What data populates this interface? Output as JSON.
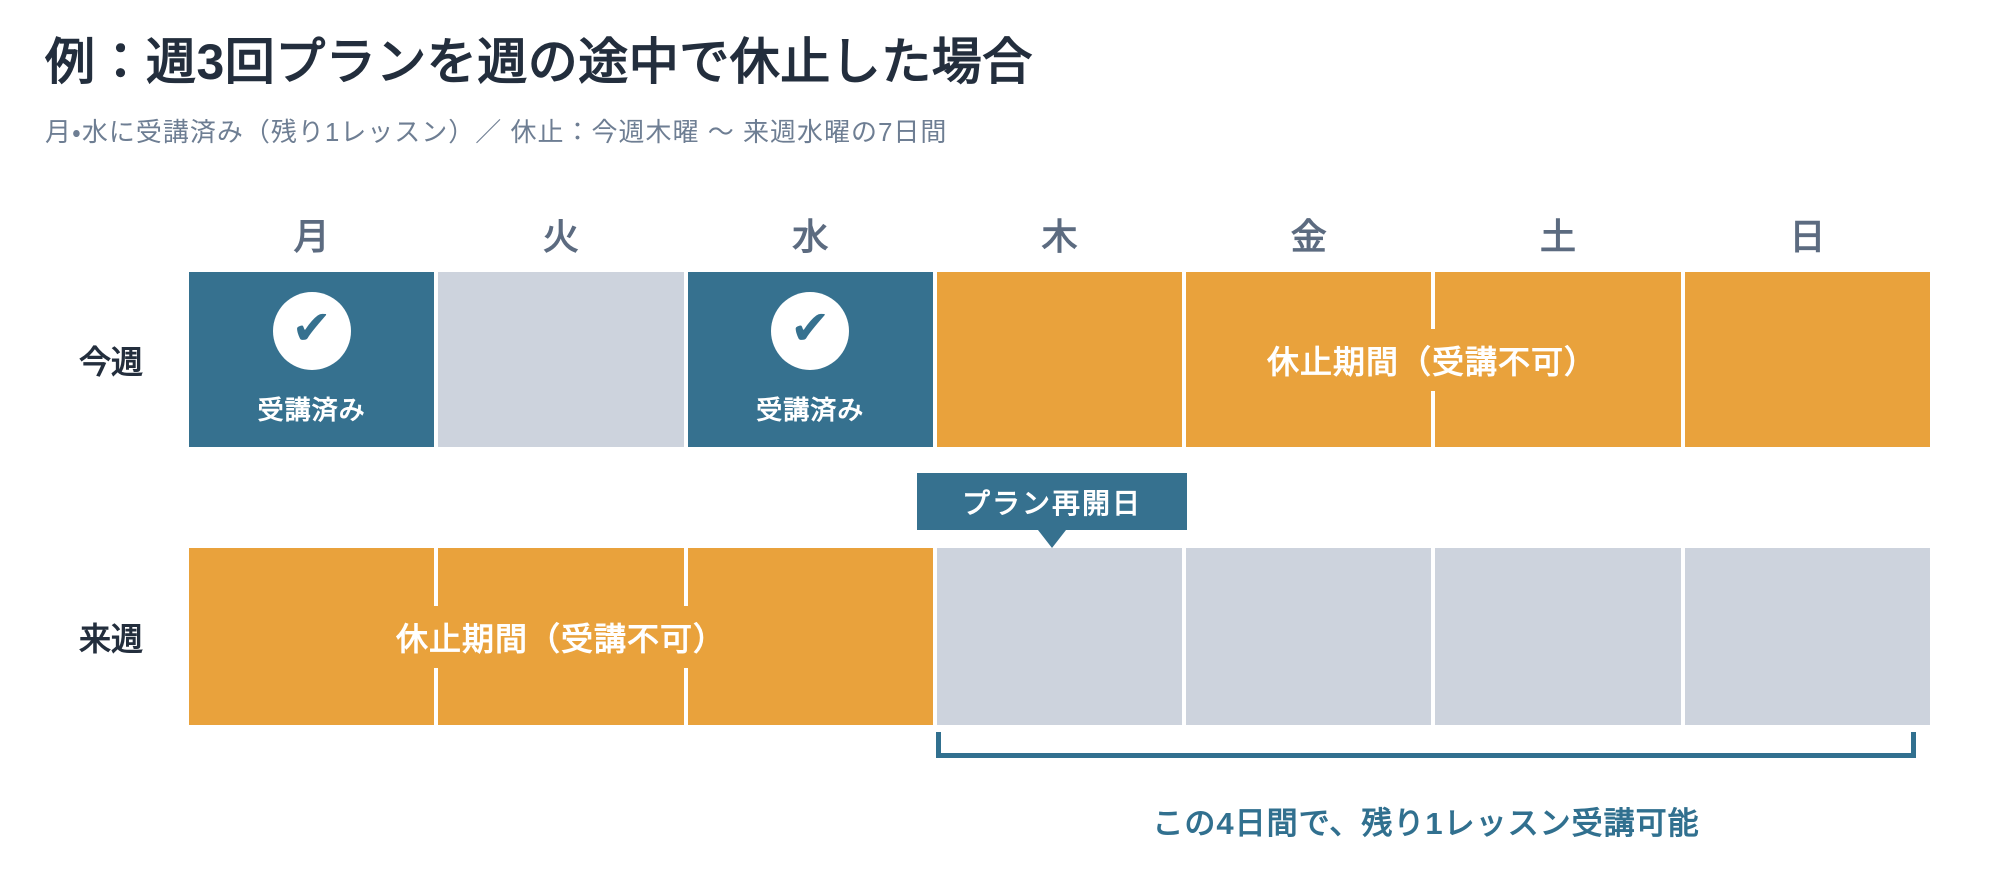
{
  "page": {
    "title": "例：週3回プランを週の途中で休止した場合",
    "subtitle": "月・水に受講済み（残り1レッスン）／ 休止：今週木曜 〜 来週水曜の7日間"
  },
  "days": [
    "月",
    "火",
    "水",
    "木",
    "金",
    "土",
    "日"
  ],
  "this_week": {
    "label": "今週",
    "completed_label": "受講済み",
    "suspension_label": "休止期間（受講不可）",
    "cell_states": [
      "completed",
      "empty",
      "completed",
      "suspended",
      "suspended",
      "suspended",
      "suspended"
    ]
  },
  "next_week": {
    "label": "来週",
    "suspension_label": "休止期間（受講不可）",
    "cell_states": [
      "suspended",
      "suspended",
      "suspended",
      "available",
      "available",
      "available",
      "available"
    ]
  },
  "badge": {
    "label": "プラン再開日"
  },
  "footer": {
    "note": "この4日間で、残り1レッスン受講可能"
  },
  "icons": {
    "check": "✔"
  },
  "colors": {
    "teal": "#36718F",
    "orange": "#E9A23C",
    "gray": "#CDD3DD",
    "ink": "#232E3D",
    "subink": "#6E7E93",
    "dayink": "#5C6B80",
    "note": "#31708F"
  }
}
